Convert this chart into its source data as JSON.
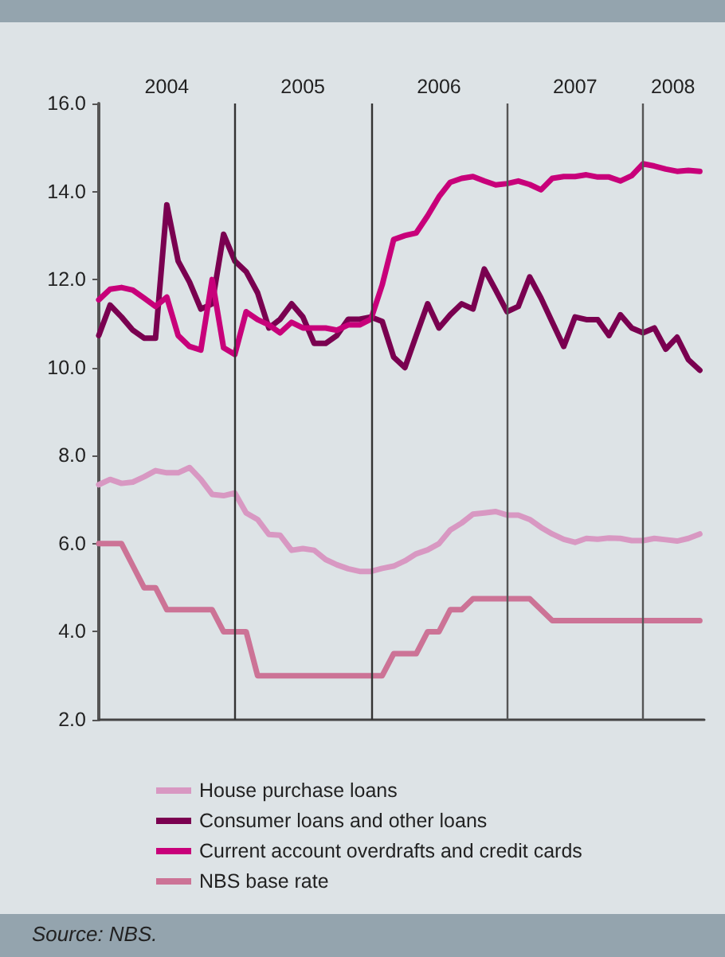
{
  "chart_data": {
    "type": "line",
    "annotations": [
      "Source: NBS."
    ],
    "xlim": [
      2004,
      2008.45
    ],
    "xticks": [
      {
        "value": 2004.5,
        "label": "2004"
      },
      {
        "value": 2005.5,
        "label": "2005"
      },
      {
        "value": 2006.5,
        "label": "2006"
      },
      {
        "value": 2007.5,
        "label": "2007"
      },
      {
        "value": 2008.22,
        "label": "2008"
      }
    ],
    "ylim": [
      2,
      16
    ],
    "yticks": [
      {
        "value": 2,
        "label": "2.0"
      },
      {
        "value": 4,
        "label": "4.0"
      },
      {
        "value": 6,
        "label": "6.0"
      },
      {
        "value": 8,
        "label": "8.0"
      },
      {
        "value": 10,
        "label": "10.0"
      },
      {
        "value": 12,
        "label": "12.0"
      },
      {
        "value": 14,
        "label": "14.0"
      },
      {
        "value": 16,
        "label": "16.0"
      }
    ],
    "x": [
      2004,
      2004.083,
      2004.167,
      2004.25,
      2004.333,
      2004.417,
      2004.5,
      2004.583,
      2004.667,
      2004.75,
      2004.833,
      2004.917,
      2005,
      2005.083,
      2005.167,
      2005.25,
      2005.333,
      2005.417,
      2005.5,
      2005.583,
      2005.667,
      2005.75,
      2005.833,
      2005.917,
      2006,
      2006.083,
      2006.167,
      2006.25,
      2006.333,
      2006.417,
      2006.5,
      2006.583,
      2006.667,
      2006.75,
      2006.833,
      2006.917,
      2007,
      2007.083,
      2007.167,
      2007.25,
      2007.333,
      2007.417,
      2007.5,
      2007.583,
      2007.667,
      2007.75,
      2007.833,
      2007.917,
      2008,
      2008.083,
      2008.167,
      2008.25,
      2008.333,
      2008.417
    ],
    "series": [
      {
        "name": "House purchase loans",
        "color": "#d898c2",
        "values": [
          7.34,
          7.46,
          7.37,
          7.4,
          7.52,
          7.66,
          7.61,
          7.61,
          7.73,
          7.46,
          7.12,
          7.09,
          7.15,
          6.7,
          6.55,
          6.21,
          6.19,
          5.85,
          5.89,
          5.85,
          5.64,
          5.52,
          5.43,
          5.37,
          5.37,
          5.44,
          5.49,
          5.61,
          5.77,
          5.86,
          6.0,
          6.31,
          6.47,
          6.67,
          6.7,
          6.73,
          6.65,
          6.65,
          6.55,
          6.37,
          6.22,
          6.1,
          6.03,
          6.12,
          6.1,
          6.13,
          6.12,
          6.07,
          6.07,
          6.12,
          6.09,
          6.06,
          6.12,
          6.22
        ]
      },
      {
        "name": "Consumer loans and other loans",
        "color": "#7a0050",
        "values": [
          10.73,
          11.42,
          11.15,
          10.85,
          10.67,
          10.67,
          13.7,
          12.42,
          11.94,
          11.33,
          11.45,
          13.03,
          12.42,
          12.18,
          11.7,
          10.9,
          11.1,
          11.45,
          11.15,
          10.55,
          10.55,
          10.73,
          11.1,
          11.1,
          11.15,
          11.05,
          10.24,
          10.0,
          10.73,
          11.45,
          10.9,
          11.2,
          11.45,
          11.33,
          12.24,
          11.76,
          11.27,
          11.39,
          12.06,
          11.58,
          11.03,
          10.48,
          11.15,
          11.09,
          11.09,
          10.73,
          11.2,
          10.9,
          10.79,
          10.9,
          10.42,
          10.69,
          10.18,
          9.94
        ]
      },
      {
        "name": "Current account overdrafts and credit cards",
        "color": "#c8007a",
        "values": [
          11.54,
          11.78,
          11.82,
          11.76,
          11.58,
          11.39,
          11.6,
          10.73,
          10.48,
          10.4,
          12.0,
          10.45,
          10.3,
          11.27,
          11.09,
          10.97,
          10.79,
          11.03,
          10.9,
          10.9,
          10.9,
          10.85,
          10.97,
          10.97,
          11.1,
          11.88,
          12.91,
          13.0,
          13.06,
          13.45,
          13.88,
          14.21,
          14.3,
          14.34,
          14.24,
          14.15,
          14.18,
          14.24,
          14.16,
          14.04,
          14.3,
          14.34,
          14.34,
          14.38,
          14.33,
          14.33,
          14.24,
          14.36,
          14.63,
          14.58,
          14.51,
          14.46,
          14.48,
          14.46
        ]
      },
      {
        "name": "NBS base rate",
        "color": "#cc7396",
        "values": [
          6,
          6,
          6,
          5.5,
          5,
          5,
          4.5,
          4.5,
          4.5,
          4.5,
          4.5,
          4,
          4,
          4,
          3,
          3,
          3,
          3,
          3,
          3,
          3,
          3,
          3,
          3,
          3,
          3,
          3.5,
          3.5,
          3.5,
          4,
          4,
          4.5,
          4.5,
          4.75,
          4.75,
          4.75,
          4.75,
          4.75,
          4.75,
          4.5,
          4.25,
          4.25,
          4.25,
          4.25,
          4.25,
          4.25,
          4.25,
          4.25,
          4.25,
          4.25,
          4.25,
          4.25,
          4.25,
          4.25
        ]
      }
    ],
    "ref_lines": [
      {
        "axis": "x",
        "value": 2005,
        "color": "#333333"
      },
      {
        "axis": "x",
        "value": 2006,
        "color": "#333333"
      },
      {
        "axis": "x",
        "value": 2007,
        "color": "#555555"
      },
      {
        "axis": "x",
        "value": 2008,
        "color": "#555555"
      }
    ],
    "legend": "bottom",
    "marker": "none",
    "line_style": "solid"
  }
}
